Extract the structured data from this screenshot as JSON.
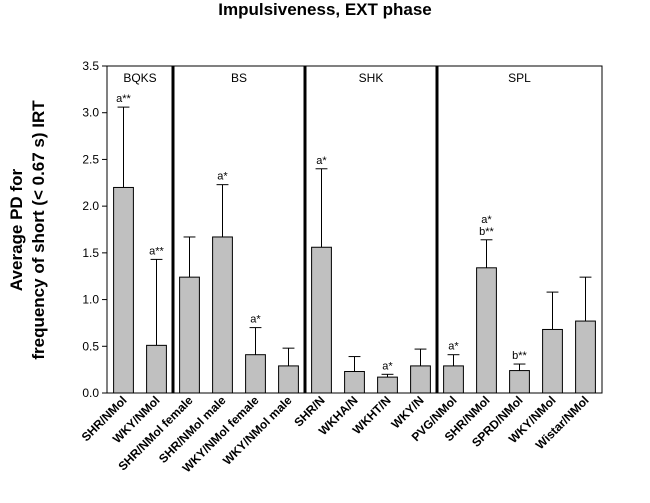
{
  "chart_data": {
    "type": "bar",
    "title": "Impulsiveness, EXT phase",
    "ylabel_lines": [
      "Average PD for",
      "frequency of short (< 0.67 s) IRT"
    ],
    "ylim": [
      0.0,
      3.5
    ],
    "yticks": [
      "0.0",
      "0.5",
      "1.0",
      "1.5",
      "2.0",
      "2.5",
      "3.0",
      "3.5"
    ],
    "ytick_values": [
      0,
      0.5,
      1.0,
      1.5,
      2.0,
      2.5,
      3.0,
      3.5
    ],
    "grid": false,
    "bar_color": "#c0c0c0",
    "groups": [
      {
        "label": "BQKS",
        "start": 0,
        "end": 1
      },
      {
        "label": "BS",
        "start": 2,
        "end": 5
      },
      {
        "label": "SHK",
        "start": 6,
        "end": 9
      },
      {
        "label": "SPL",
        "start": 10,
        "end": 14
      }
    ],
    "categories": [
      "SHR/NMol",
      "WKY/NMol",
      "SHR/NMol female",
      "SHR/NMol male",
      "WKY/NMol female",
      "WKY/NMol male",
      "SHR/N",
      "WKHA/N",
      "WKHT/N",
      "WKY/N",
      "PVG/NMol",
      "SHR/NMol",
      "SPRD/NMol",
      "WKY/NMol",
      "Wistar/NMol"
    ],
    "values": [
      2.2,
      0.51,
      1.24,
      1.67,
      0.41,
      0.29,
      1.56,
      0.23,
      0.17,
      0.29,
      0.29,
      1.34,
      0.24,
      0.68,
      0.77
    ],
    "error_upper": [
      3.06,
      1.43,
      1.67,
      2.23,
      0.7,
      0.48,
      2.4,
      0.39,
      0.2,
      0.47,
      0.41,
      1.64,
      0.31,
      1.08,
      1.24
    ],
    "annotations": [
      {
        "bar": 0,
        "lines": [
          "a**"
        ]
      },
      {
        "bar": 1,
        "lines": [
          "a**"
        ]
      },
      {
        "bar": 3,
        "lines": [
          "a*"
        ]
      },
      {
        "bar": 4,
        "lines": [
          "a*"
        ]
      },
      {
        "bar": 6,
        "lines": [
          "a*"
        ]
      },
      {
        "bar": 8,
        "lines": [
          "a*"
        ]
      },
      {
        "bar": 10,
        "lines": [
          "a*"
        ]
      },
      {
        "bar": 11,
        "lines": [
          "a*",
          "b**"
        ]
      },
      {
        "bar": 12,
        "lines": [
          "b**"
        ]
      }
    ]
  }
}
